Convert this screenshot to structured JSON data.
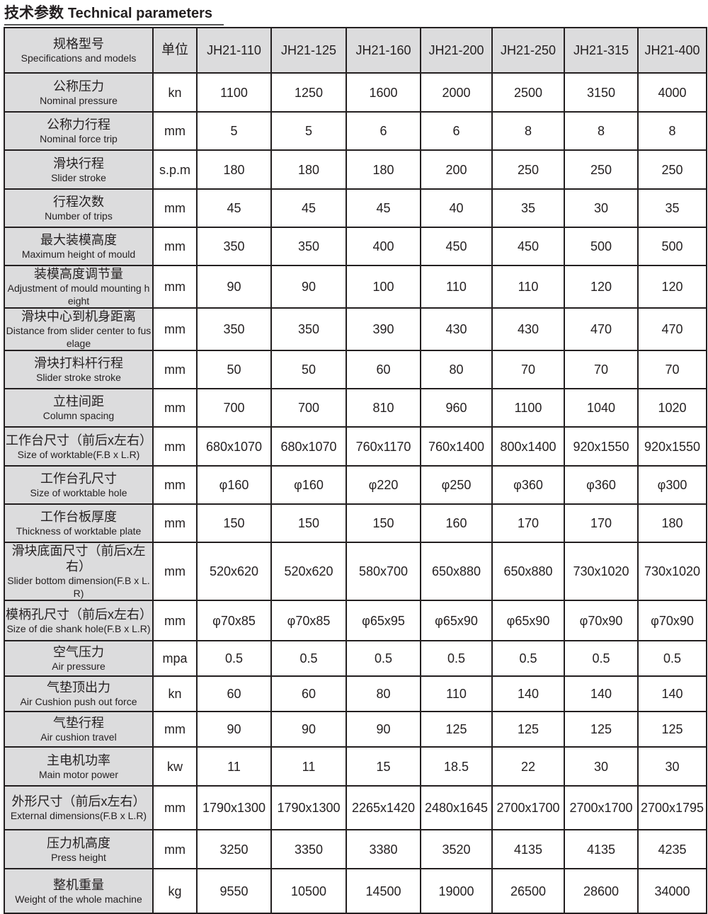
{
  "title": {
    "zh": "技术参数",
    "en": "Technical parameters"
  },
  "header": {
    "name_zh": "规格型号",
    "name_en": "Specifications and models",
    "unit": "单位",
    "models": [
      "JH21-110",
      "JH21-125",
      "JH21-160",
      "JH21-200",
      "JH21-250",
      "JH21-315",
      "JH21-400"
    ]
  },
  "rows": [
    {
      "zh": "公称压力",
      "en": "Nominal pressure",
      "unit": "kn",
      "values": [
        "1100",
        "1250",
        "1600",
        "2000",
        "2500",
        "3150",
        "4000"
      ]
    },
    {
      "zh": "公称力行程",
      "en": "Nominal force trip",
      "unit": "mm",
      "values": [
        "5",
        "5",
        "6",
        "6",
        "8",
        "8",
        "8"
      ]
    },
    {
      "zh": "滑块行程",
      "en": "Slider stroke",
      "unit": "s.p.m",
      "values": [
        "180",
        "180",
        "180",
        "200",
        "250",
        "250",
        "250"
      ]
    },
    {
      "zh": "行程次数",
      "en": "Number of trips",
      "unit": "mm",
      "values": [
        "45",
        "45",
        "45",
        "40",
        "35",
        "30",
        "35"
      ]
    },
    {
      "zh": "最大装模高度",
      "en": "Maximum height of mould",
      "unit": "mm",
      "values": [
        "350",
        "350",
        "400",
        "450",
        "450",
        "500",
        "500"
      ]
    },
    {
      "zh": "装模高度调节量",
      "en": "Adjustment of mould mounting height",
      "unit": "mm",
      "values": [
        "90",
        "90",
        "100",
        "110",
        "110",
        "120",
        "120"
      ]
    },
    {
      "zh": "滑块中心到机身距离",
      "en": "Distance from slider center to fuselage",
      "unit": "mm",
      "values": [
        "350",
        "350",
        "390",
        "430",
        "430",
        "470",
        "470"
      ]
    },
    {
      "zh": "滑块打料杆行程",
      "en": "Slider stroke stroke",
      "unit": "mm",
      "values": [
        "50",
        "50",
        "60",
        "80",
        "70",
        "70",
        "70"
      ]
    },
    {
      "zh": "立柱间距",
      "en": "Column spacing",
      "unit": "mm",
      "values": [
        "700",
        "700",
        "810",
        "960",
        "1100",
        "1040",
        "1020"
      ]
    },
    {
      "zh": "工作台尺寸（前后x左右）",
      "en": "Size of worktable(F.B x L.R)",
      "unit": "mm",
      "values": [
        "680x1070",
        "680x1070",
        "760x1170",
        "760x1400",
        "800x1400",
        "920x1550",
        "920x1550"
      ]
    },
    {
      "zh": "工作台孔尺寸",
      "en": "Size of worktable hole",
      "unit": "mm",
      "values": [
        "φ160",
        "φ160",
        "φ220",
        "φ250",
        "φ360",
        "φ360",
        "φ300"
      ]
    },
    {
      "zh": "工作台板厚度",
      "en": "Thickness of worktable plate",
      "unit": "mm",
      "values": [
        "150",
        "150",
        "150",
        "160",
        "170",
        "170",
        "180"
      ]
    },
    {
      "zh": "滑块底面尺寸（前后x左右）",
      "en": "Slider bottom dimension(F.B x L.R)",
      "unit": "mm",
      "values": [
        "520x620",
        "520x620",
        "580x700",
        "650x880",
        "650x880",
        "730x1020",
        "730x1020"
      ]
    },
    {
      "zh": "模柄孔尺寸（前后x左右）",
      "en": "Size of die shank hole(F.B x L.R)",
      "unit": "mm",
      "values": [
        "φ70x85",
        "φ70x85",
        "φ65x95",
        "φ65x90",
        "φ65x90",
        "φ70x90",
        "φ70x90"
      ]
    },
    {
      "zh": "空气压力",
      "en": "Air pressure",
      "unit": "mpa",
      "values": [
        "0.5",
        "0.5",
        "0.5",
        "0.5",
        "0.5",
        "0.5",
        "0.5"
      ]
    },
    {
      "zh": "气垫顶出力",
      "en": "Air Cushion push out force",
      "unit": "kn",
      "values": [
        "60",
        "60",
        "80",
        "110",
        "140",
        "140",
        "140"
      ]
    },
    {
      "zh": "气垫行程",
      "en": "Air cushion travel",
      "unit": "mm",
      "values": [
        "90",
        "90",
        "90",
        "125",
        "125",
        "125",
        "125"
      ]
    },
    {
      "zh": "主电机功率",
      "en": "Main motor power",
      "unit": "kw",
      "values": [
        "11",
        "11",
        "15",
        "18.5",
        "22",
        "30",
        "30"
      ]
    },
    {
      "zh": "外形尺寸（前后x左右）",
      "en": "External dimensions(F.B x L.R)",
      "unit": "mm",
      "values": [
        "1790x1300",
        "1790x1300",
        "2265x1420",
        "2480x1645",
        "2700x1700",
        "2700x1700",
        "2700x1795"
      ]
    },
    {
      "zh": "压力机高度",
      "en": "Press height",
      "unit": "mm",
      "values": [
        "3250",
        "3350",
        "3380",
        "3520",
        "4135",
        "4135",
        "4235"
      ]
    },
    {
      "zh": "整机重量",
      "en": "Weight of the whole machine",
      "unit": "kg",
      "values": [
        "9550",
        "10500",
        "14500",
        "19000",
        "26500",
        "28600",
        "34000"
      ]
    }
  ]
}
